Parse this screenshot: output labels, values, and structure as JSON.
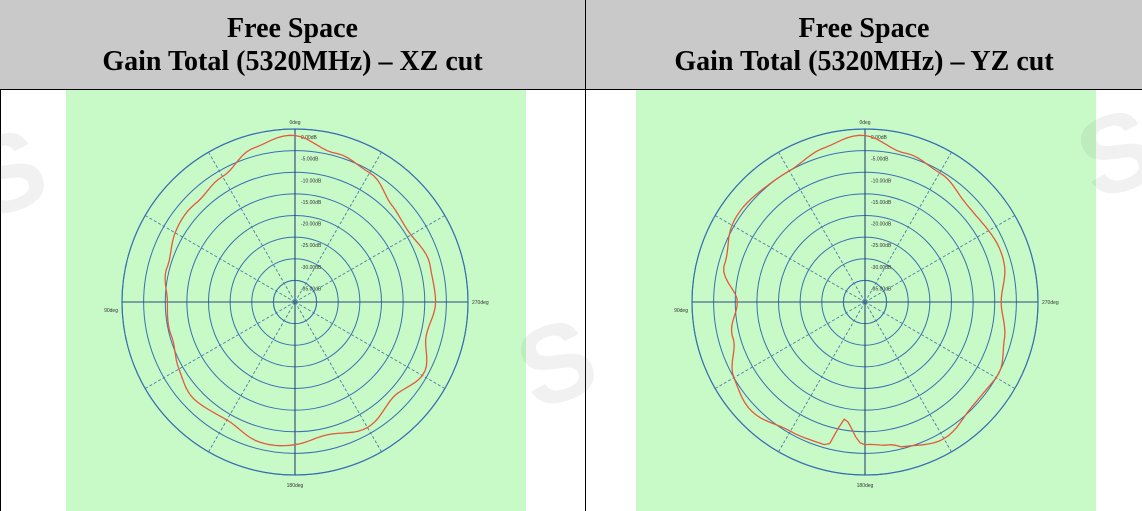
{
  "table": {
    "left_header": {
      "line1": "Free Space",
      "line2": "Gain Total (5320MHz) – XZ cut"
    },
    "right_header": {
      "line1": "Free Space",
      "line2": "Gain Total (5320MHz) – YZ cut"
    }
  },
  "chart_data": [
    {
      "type": "polar",
      "angular_labels": {
        "top": "0deg",
        "left": "90deg",
        "right": "270deg",
        "bottom": "180deg"
      },
      "radial_labels": [
        "0.00dB",
        "-5.00dB",
        "-10.00dB",
        "-15.00dB",
        "-20.00dB",
        "-25.00dB",
        "-30.00dB",
        "-35.00dB"
      ],
      "rlim": [
        -40,
        0
      ],
      "angle_step_deg": 30,
      "colors": {
        "background": "#c8fac8",
        "grid_ring": "#3a6fb0",
        "curve": "#e05a3c"
      },
      "series": [
        {
          "theta_deg": [
            0,
            15,
            30,
            45,
            60,
            75,
            90,
            105,
            120,
            135,
            150,
            165,
            180,
            195,
            210,
            225,
            240,
            255,
            270,
            285,
            300,
            315,
            330,
            345
          ],
          "gain_db": [
            -1.5,
            -3.5,
            -6,
            -8,
            -8,
            -9,
            -11,
            -10,
            -9,
            -8,
            -8,
            -7,
            -7,
            -8,
            -7,
            -8,
            -6,
            -9,
            -7,
            -8,
            -9,
            -8,
            -6,
            -4
          ]
        }
      ]
    },
    {
      "type": "polar",
      "angular_labels": {
        "top": "0deg",
        "left": "90deg",
        "right": "270deg",
        "bottom": "180deg"
      },
      "radial_labels": [
        "0.00dB",
        "-5.00dB",
        "-10.00dB",
        "-15.00dB",
        "-20.00dB",
        "-25.00dB",
        "-30.00dB",
        "-35.00dB"
      ],
      "rlim": [
        -40,
        0
      ],
      "angle_step_deg": 30,
      "colors": {
        "background": "#c8fac8",
        "grid_ring": "#3a6fb0",
        "curve": "#e05a3c"
      },
      "series": [
        {
          "theta_deg": [
            0,
            15,
            30,
            45,
            60,
            75,
            90,
            105,
            120,
            135,
            150,
            165,
            170,
            180,
            190,
            195,
            210,
            225,
            240,
            255,
            270,
            285,
            300,
            315,
            330,
            345
          ],
          "gain_db": [
            -1.5,
            -3.5,
            -4.5,
            -5,
            -4.5,
            -6,
            -11,
            -8,
            -5,
            -4,
            -5,
            -6,
            -13,
            -7,
            -6,
            -5,
            -4,
            -5,
            -5,
            -7,
            -8,
            -7,
            -7,
            -7,
            -6,
            -4
          ]
        }
      ]
    }
  ]
}
